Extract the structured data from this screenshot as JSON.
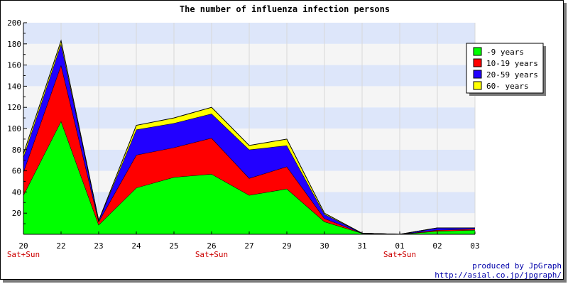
{
  "chart_data": {
    "type": "area",
    "stacked": true,
    "title": "The number of influenza infection persons",
    "xlabel": "",
    "ylabel": "",
    "ylim": [
      0,
      200
    ],
    "y_ticks": [
      20,
      40,
      60,
      80,
      100,
      120,
      140,
      160,
      180,
      200
    ],
    "x": [
      "20",
      "22",
      "23",
      "24",
      "25",
      "26",
      "27",
      "29",
      "30",
      "31",
      "01",
      "02",
      "03"
    ],
    "x_sublabels": [
      "Sat+Sun",
      "",
      "",
      "",
      "",
      "Sat+Sun",
      "",
      "",
      "",
      "",
      "Sat+Sun",
      "",
      ""
    ],
    "grid": true,
    "legend_position": "top-right",
    "series": [
      {
        "name": "-9 years",
        "color": "#00ff00",
        "values": [
          37,
          107,
          9,
          44,
          54,
          57,
          37,
          43,
          12,
          1,
          0,
          3,
          4
        ]
      },
      {
        "name": "10-19 years",
        "color": "#ff0000",
        "values": [
          22,
          53,
          3,
          31,
          28,
          34,
          16,
          21,
          3,
          0,
          0,
          1,
          1
        ]
      },
      {
        "name": "20-59 years",
        "color": "#2200ff",
        "values": [
          14,
          20,
          1,
          24,
          23,
          23,
          27,
          20,
          4,
          0,
          0,
          2,
          1
        ]
      },
      {
        "name": "60- years",
        "color": "#ffff00",
        "values": [
          3,
          3,
          0,
          4,
          5,
          6,
          4,
          6,
          1,
          0,
          0,
          0,
          0
        ]
      }
    ]
  },
  "credits": {
    "line1": "produced by JpGraph",
    "line2": "http://asial.co.jp/jpgraph/"
  },
  "colors": {
    "band_light": "#f5f5f5",
    "band_blue": "#dde6fa",
    "sublabel": "#cc0000",
    "credit": "#0000aa"
  }
}
